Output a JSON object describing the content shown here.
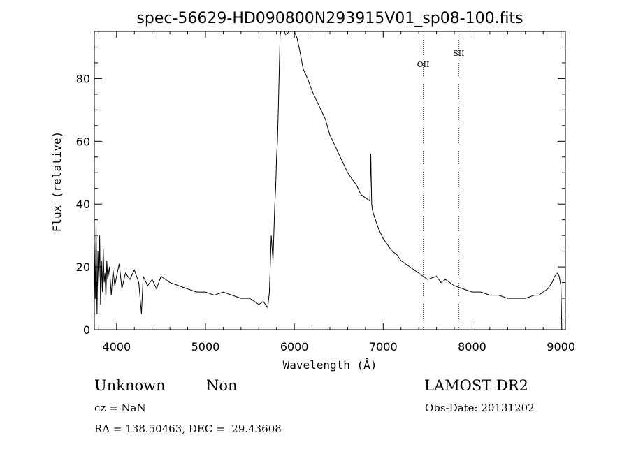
{
  "chart_data": {
    "type": "line",
    "title": "spec-56629-HD090800N293915V01_sp08-100.fits",
    "xlabel": "Wavelength (Å)",
    "ylabel": "Flux (relative)",
    "xlim": [
      3750,
      9050
    ],
    "ylim": [
      0,
      95
    ],
    "xticks": [
      "4000",
      "5000",
      "6000",
      "7000",
      "8000",
      "9000"
    ],
    "yticks": [
      "0",
      "20",
      "40",
      "60",
      "80"
    ],
    "series": [
      {
        "x": [
          3750,
          3760,
          3770,
          3780,
          3790,
          3800,
          3810,
          3820,
          3830,
          3840,
          3850,
          3860,
          3870,
          3880,
          3890,
          3900,
          3920,
          3940,
          3960,
          3980,
          4000,
          4030,
          4060,
          4100,
          4150,
          4200,
          4250,
          4280,
          4300,
          4350,
          4400,
          4450,
          4500,
          4600,
          4700,
          4800,
          4900,
          5000,
          5100,
          5200,
          5300,
          5400,
          5500,
          5550,
          5600,
          5650,
          5700,
          5720,
          5740,
          5760,
          5780,
          5790,
          5800,
          5810,
          5820,
          5830,
          5840,
          5850,
          5860,
          5870,
          5880,
          5890,
          5900,
          5950,
          6000,
          6030,
          6060,
          6100,
          6150,
          6200,
          6250,
          6300,
          6350,
          6400,
          6450,
          6500,
          6550,
          6600,
          6650,
          6700,
          6750,
          6800,
          6850,
          6860,
          6870,
          6880,
          6900,
          6950,
          7000,
          7050,
          7100,
          7150,
          7200,
          7300,
          7400,
          7500,
          7600,
          7650,
          7700,
          7800,
          7900,
          8000,
          8100,
          8200,
          8300,
          8400,
          8500,
          8600,
          8700,
          8750,
          8800,
          8850,
          8900,
          8930,
          8960,
          8980,
          9000,
          9010
        ],
        "y": [
          28,
          10,
          34,
          5,
          25,
          14,
          30,
          8,
          22,
          12,
          26,
          15,
          18,
          10,
          22,
          16,
          20,
          11,
          19,
          14,
          17,
          21,
          13,
          18,
          16,
          19,
          15,
          5,
          17,
          14,
          16,
          13,
          17,
          15,
          14,
          13,
          12,
          12,
          11,
          12,
          11,
          10,
          10,
          9,
          8,
          9,
          7,
          12,
          30,
          22,
          40,
          45,
          55,
          60,
          70,
          82,
          94,
          95,
          96,
          97,
          97,
          95,
          94,
          96,
          95,
          93,
          89,
          83,
          80,
          76,
          73,
          70,
          67,
          62,
          59,
          56,
          53,
          50,
          48,
          46,
          43,
          42,
          41,
          56,
          40,
          38,
          36,
          32,
          29,
          27,
          25,
          24,
          22,
          20,
          18,
          16,
          17,
          15,
          16,
          14,
          13,
          12,
          12,
          11,
          11,
          10,
          10,
          10,
          11,
          11,
          12,
          13,
          15,
          17,
          18,
          17,
          14,
          0
        ]
      }
    ],
    "annotations": [
      {
        "label": "OII",
        "x": 7450
      },
      {
        "label": "SII",
        "x": 7850
      }
    ]
  },
  "info": {
    "class": "Unknown",
    "subclass": "Non",
    "survey": "LAMOST DR2",
    "cz": "cz = NaN",
    "obs_date": "Obs-Date: 20131202",
    "coords": "RA = 138.50463, DEC =  29.43608"
  }
}
